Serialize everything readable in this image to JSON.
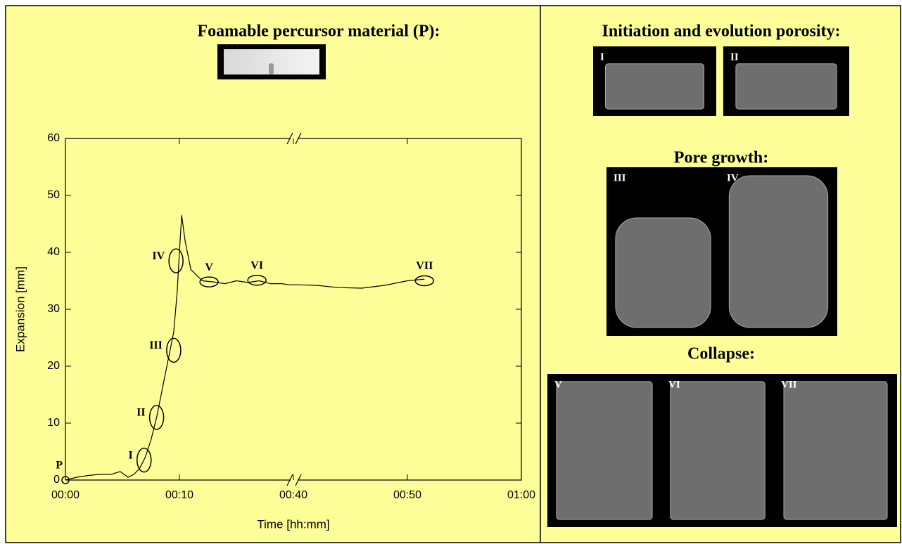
{
  "chart_data": {
    "type": "line",
    "x": [
      0,
      1,
      2,
      3,
      4,
      4.8,
      5.5,
      6,
      6.5,
      7,
      7.5,
      8,
      8.5,
      9,
      9.5,
      9.8,
      10,
      10.2,
      10.5,
      11,
      11.5,
      12,
      13,
      14,
      15,
      16,
      17,
      18,
      19,
      19.6,
      40.4,
      42,
      44,
      46,
      48,
      50,
      51.5
    ],
    "values": [
      0,
      0.5,
      0.8,
      1,
      1,
      1.5,
      0.5,
      1,
      2,
      4,
      7,
      11,
      16,
      21,
      26,
      33,
      40,
      46.5,
      42,
      37,
      36,
      35,
      34.8,
      34.5,
      35,
      34.7,
      35,
      34.5,
      34.5,
      34.3,
      34.3,
      34.2,
      33.8,
      33.7,
      34.2,
      35,
      35.3
    ],
    "color": "#000000",
    "xlabel": "Time [hh:mm]",
    "ylabel": "Expansion [mm]",
    "xlim": [
      0,
      60
    ],
    "xbreak": [
      20,
      40
    ],
    "xticks": [
      {
        "value": 0,
        "label": "00:00"
      },
      {
        "value": 10,
        "label": "00:10"
      },
      {
        "value": 40,
        "label": "00:40"
      },
      {
        "value": 50,
        "label": "00:50"
      },
      {
        "value": 60,
        "label": "01:00"
      }
    ],
    "ylim": [
      0,
      60
    ],
    "yticks": [
      0,
      10,
      20,
      30,
      40,
      50,
      60
    ],
    "annotations": [
      {
        "label": "P",
        "x": 0,
        "y": 0
      },
      {
        "label": "I",
        "x": 6.9,
        "y": 3.5
      },
      {
        "label": "II",
        "x": 8,
        "y": 11
      },
      {
        "label": "III",
        "x": 9.5,
        "y": 22.8
      },
      {
        "label": "IV",
        "x": 9.7,
        "y": 38.5
      },
      {
        "label": "V",
        "x": 12.6,
        "y": 34.8
      },
      {
        "label": "VI",
        "x": 16.8,
        "y": 35.1
      },
      {
        "label": "VII",
        "x": 51.5,
        "y": 35
      }
    ]
  },
  "precursor": {
    "title": "Foamable percursor material (P):"
  },
  "photos": [
    {
      "title": "Initiation and evolution porosity:",
      "labels": [
        "I",
        "II"
      ]
    },
    {
      "title": "Pore growth:",
      "labels": [
        "III",
        "IV"
      ]
    },
    {
      "title": "Collapse:",
      "labels": [
        "V",
        "VI",
        "VII"
      ]
    }
  ]
}
